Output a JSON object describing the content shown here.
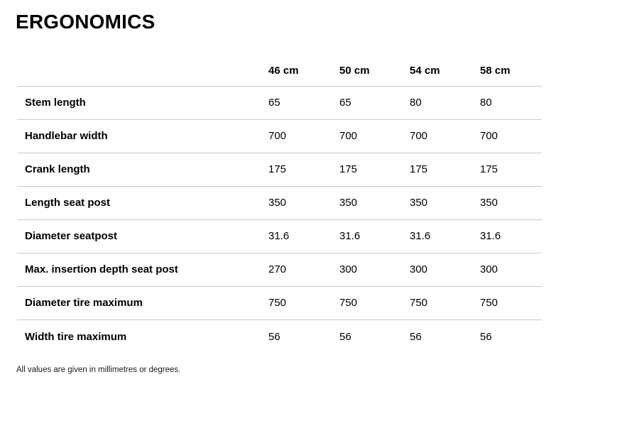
{
  "page": {
    "title": "ERGONOMICS",
    "footnote": "All values are given in millimetres or degrees."
  },
  "table": {
    "columns": [
      "46 cm",
      "50 cm",
      "54 cm",
      "58 cm"
    ],
    "rows": [
      {
        "label": "Stem length",
        "values": [
          "65",
          "65",
          "80",
          "80"
        ]
      },
      {
        "label": "Handlebar width",
        "values": [
          "700",
          "700",
          "700",
          "700"
        ]
      },
      {
        "label": "Crank length",
        "values": [
          "175",
          "175",
          "175",
          "175"
        ]
      },
      {
        "label": "Length seat post",
        "values": [
          "350",
          "350",
          "350",
          "350"
        ]
      },
      {
        "label": "Diameter seatpost",
        "values": [
          "31.6",
          "31.6",
          "31.6",
          "31.6"
        ]
      },
      {
        "label": "Max. insertion depth seat post",
        "values": [
          "270",
          "300",
          "300",
          "300"
        ]
      },
      {
        "label": "Diameter tire maximum",
        "values": [
          "750",
          "750",
          "750",
          "750"
        ]
      },
      {
        "label": "Width tire maximum",
        "values": [
          "56",
          "56",
          "56",
          "56"
        ]
      }
    ]
  },
  "colors": {
    "background": "#ffffff",
    "text": "#000000",
    "divider": "#c8c8c8",
    "footnote_text": "#1a1a1a"
  }
}
